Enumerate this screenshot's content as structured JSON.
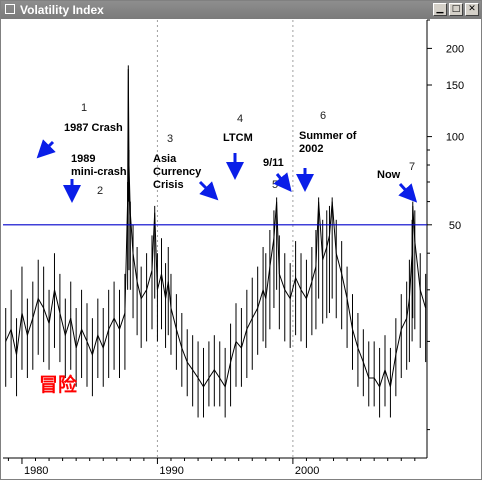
{
  "window": {
    "title": "Volatility Index",
    "buttons": [
      "minimize",
      "maximize",
      "close"
    ]
  },
  "colors": {
    "series": "#000000",
    "reference_line": "#0000cc",
    "arrow": "#0a1ee8",
    "watermark": "#ff0000",
    "background": "#ffffff"
  },
  "watermark_text": "冒险",
  "chart_data": {
    "type": "line",
    "title": "",
    "xlabel": "",
    "ylabel": "",
    "y_scale": "log",
    "ylim": [
      8,
      250
    ],
    "xlim": [
      1978.6,
      2009.9
    ],
    "x_ticks": [
      {
        "value": 1980,
        "label": "1980"
      },
      {
        "value": 1990,
        "label": "1990"
      },
      {
        "value": 2000,
        "label": "2000"
      }
    ],
    "y_ticks": [
      {
        "value": 200,
        "label": "200"
      },
      {
        "value": 150,
        "label": "150"
      },
      {
        "value": 100,
        "label": "100"
      },
      {
        "value": 50,
        "label": "50"
      }
    ],
    "reference_line": {
      "value": 50
    },
    "grid": {
      "x_dashed": [
        1990,
        2000
      ]
    },
    "annotations": [
      {
        "number": "1",
        "label": [
          "1987 Crash"
        ]
      },
      {
        "number": "2",
        "label": [
          "1989",
          "mini-crash"
        ]
      },
      {
        "number": "3",
        "label": [
          "Asia",
          "Currency",
          "Crisis"
        ]
      },
      {
        "number": "4",
        "label": [
          "LTCM"
        ]
      },
      {
        "number": "5",
        "label": [
          "9/11"
        ]
      },
      {
        "number": "6",
        "label": [
          "Summer of",
          "2002"
        ]
      },
      {
        "number": "7",
        "label": [
          "Now"
        ]
      }
    ],
    "series": [
      {
        "x": [
          1978.8,
          1979.2,
          1979.6,
          1980.0,
          1980.4,
          1980.8,
          1981.2,
          1981.6,
          1982.0,
          1982.4,
          1982.8,
          1983.2,
          1983.6,
          1984.0,
          1984.4,
          1984.8,
          1985.2,
          1985.6,
          1986.0,
          1986.4,
          1986.8,
          1987.2,
          1987.6,
          1987.8,
          1987.85,
          1987.9,
          1988.0,
          1988.2,
          1988.5,
          1988.8,
          1989.2,
          1989.6,
          1989.8,
          1990.0,
          1990.3,
          1990.6,
          1990.8,
          1991.0,
          1991.4,
          1991.8,
          1992.2,
          1992.6,
          1993.0,
          1993.4,
          1993.8,
          1994.2,
          1994.6,
          1995.0,
          1995.4,
          1995.8,
          1996.2,
          1996.6,
          1997.0,
          1997.4,
          1997.8,
          1998.0,
          1998.3,
          1998.6,
          1998.8,
          1999.0,
          1999.4,
          1999.8,
          2000.2,
          2000.6,
          2001.0,
          2001.4,
          2001.7,
          2001.9,
          2002.2,
          2002.5,
          2002.7,
          2002.9,
          2003.2,
          2003.6,
          2004.0,
          2004.4,
          2004.8,
          2005.2,
          2005.6,
          2006.0,
          2006.4,
          2006.8,
          2007.2,
          2007.6,
          2008.0,
          2008.4,
          2008.6,
          2008.8,
          2008.85,
          2009.0,
          2009.4,
          2009.8
        ],
        "y": [
          20,
          22,
          18,
          25,
          21,
          24,
          28,
          26,
          23,
          30,
          25,
          21,
          24,
          19,
          22,
          20,
          18,
          21,
          19,
          22,
          24,
          22,
          25,
          60,
          170,
          80,
          55,
          40,
          32,
          28,
          30,
          35,
          55,
          30,
          34,
          28,
          32,
          26,
          22,
          19,
          17,
          16,
          15,
          14,
          15,
          16,
          15,
          14,
          17,
          20,
          19,
          22,
          24,
          26,
          30,
          28,
          36,
          45,
          60,
          34,
          30,
          28,
          33,
          30,
          28,
          32,
          36,
          60,
          38,
          42,
          46,
          60,
          40,
          34,
          28,
          22,
          19,
          17,
          15,
          15,
          14,
          16,
          14,
          18,
          22,
          24,
          28,
          40,
          58,
          44,
          30,
          26
        ],
        "range_y_lo": [
          14,
          15,
          13,
          16,
          15,
          16,
          18,
          17,
          16,
          19,
          17,
          15,
          16,
          14,
          15,
          14,
          13,
          15,
          14,
          15,
          16,
          15,
          16,
          30,
          60,
          35,
          30,
          24,
          21,
          19,
          20,
          22,
          28,
          20,
          22,
          19,
          21,
          18,
          16,
          14,
          13,
          12,
          11,
          11,
          12,
          12,
          12,
          11,
          12,
          14,
          14,
          15,
          16,
          18,
          20,
          19,
          22,
          26,
          30,
          22,
          20,
          19,
          21,
          20,
          19,
          21,
          22,
          28,
          23,
          24,
          25,
          28,
          24,
          22,
          19,
          16,
          14,
          13,
          12,
          12,
          11,
          12,
          11,
          13,
          15,
          16,
          17,
          20,
          24,
          22,
          19,
          17
        ],
        "range_y_hi": [
          26,
          30,
          24,
          36,
          28,
          32,
          38,
          36,
          30,
          40,
          34,
          28,
          32,
          26,
          30,
          27,
          24,
          28,
          26,
          30,
          32,
          30,
          34,
          70,
          175,
          90,
          60,
          50,
          42,
          36,
          40,
          46,
          58,
          40,
          45,
          37,
          42,
          34,
          29,
          25,
          22,
          21,
          20,
          19,
          20,
          21,
          20,
          19,
          23,
          27,
          26,
          30,
          33,
          36,
          42,
          40,
          48,
          56,
          62,
          46,
          40,
          37,
          44,
          40,
          38,
          42,
          48,
          62,
          52,
          56,
          58,
          62,
          52,
          44,
          36,
          29,
          25,
          22,
          20,
          20,
          19,
          21,
          19,
          24,
          29,
          32,
          38,
          52,
          60,
          56,
          40,
          34
        ]
      }
    ]
  }
}
